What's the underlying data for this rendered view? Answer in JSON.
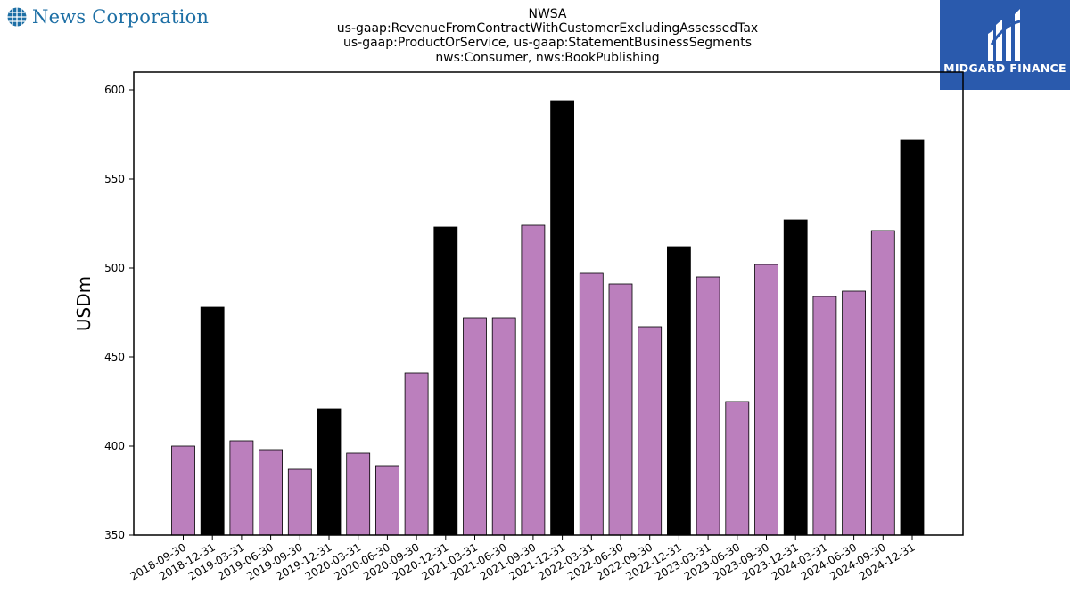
{
  "branding": {
    "left_logo_text": "News Corporation",
    "left_logo_icon": "globe-icon",
    "right_logo_text": "MIDGARD FINANCE",
    "right_logo_icon": "midgard-mark-icon",
    "right_logo_bg": "#2a5aad",
    "left_logo_color": "#1d6fa5"
  },
  "chart_data": {
    "type": "bar",
    "title_lines": [
      "NWSA",
      "us-gaap:RevenueFromContractWithCustomerExcludingAssessedTax",
      "us-gaap:ProductOrService, us-gaap:StatementBusinessSegments",
      "nws:Consumer, nws:BookPublishing"
    ],
    "xlabel": "",
    "ylabel": "USDm",
    "ylim": [
      350,
      610
    ],
    "yticks": [
      350,
      400,
      450,
      500,
      550,
      600
    ],
    "grid": false,
    "legend": "none",
    "colors": {
      "quarter": "#bb7fbd",
      "year_end": "#000000",
      "edge": "#000000"
    },
    "categories": [
      "2018-09-30",
      "2018-12-31",
      "2019-03-31",
      "2019-06-30",
      "2019-09-30",
      "2019-12-31",
      "2020-03-31",
      "2020-06-30",
      "2020-09-30",
      "2020-12-31",
      "2021-03-31",
      "2021-06-30",
      "2021-09-30",
      "2021-12-31",
      "2022-03-31",
      "2022-06-30",
      "2022-09-30",
      "2022-12-31",
      "2023-03-31",
      "2023-06-30",
      "2023-09-30",
      "2023-12-31",
      "2024-03-31",
      "2024-06-30",
      "2024-09-30",
      "2024-12-31"
    ],
    "values": [
      400,
      478,
      403,
      398,
      387,
      421,
      396,
      389,
      441,
      523,
      472,
      472,
      524,
      594,
      497,
      491,
      467,
      512,
      495,
      425,
      502,
      527,
      484,
      487,
      521,
      572
    ]
  }
}
